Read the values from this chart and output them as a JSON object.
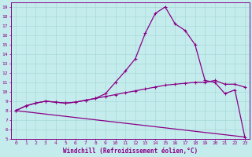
{
  "xlabel": "Windchill (Refroidissement éolien,°C)",
  "xlim": [
    -0.5,
    23.5
  ],
  "ylim": [
    5,
    19.5
  ],
  "xticks": [
    0,
    1,
    2,
    3,
    4,
    5,
    6,
    7,
    8,
    9,
    10,
    11,
    12,
    13,
    14,
    15,
    16,
    17,
    18,
    19,
    20,
    21,
    22,
    23
  ],
  "yticks": [
    5,
    6,
    7,
    8,
    9,
    10,
    11,
    12,
    13,
    14,
    15,
    16,
    17,
    18,
    19
  ],
  "bg_color": "#c5ecec",
  "line_color": "#880088",
  "grid_color": "#a8d8d8",
  "line1_x": [
    0,
    1,
    2,
    3,
    4,
    5,
    6,
    7,
    8,
    9,
    10,
    11,
    12,
    13,
    14,
    15,
    16,
    17,
    18,
    19,
    20,
    21,
    22,
    23
  ],
  "line1_y": [
    8.0,
    8.5,
    8.8,
    9.0,
    8.9,
    8.8,
    8.9,
    9.1,
    9.3,
    9.8,
    11.0,
    12.2,
    13.5,
    16.2,
    18.3,
    19.0,
    17.2,
    16.5,
    15.0,
    11.2,
    11.0,
    9.8,
    10.2,
    5.2
  ],
  "line2_x": [
    0,
    1,
    2,
    3,
    4,
    5,
    6,
    7,
    8,
    9,
    10,
    11,
    12,
    13,
    14,
    15,
    16,
    17,
    18,
    19,
    20,
    21,
    22,
    23
  ],
  "line2_y": [
    8.0,
    8.5,
    8.8,
    9.0,
    8.9,
    8.8,
    8.9,
    9.1,
    9.3,
    9.5,
    9.7,
    9.9,
    10.1,
    10.3,
    10.5,
    10.7,
    10.8,
    10.9,
    11.0,
    11.0,
    11.2,
    10.8,
    10.8,
    10.5
  ],
  "line3_x": [
    0,
    23
  ],
  "line3_y": [
    8.0,
    5.2
  ]
}
